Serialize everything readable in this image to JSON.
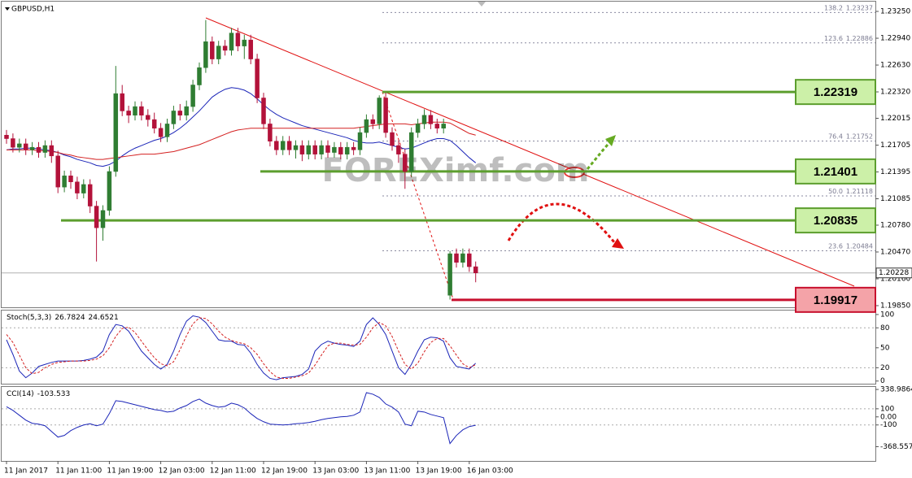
{
  "chart_data": [
    {
      "type": "candlestick",
      "title": "GBPUSD,H1",
      "watermark": "FOREXimf.com",
      "categories": [
        "11 Jan 2017",
        null,
        null,
        null,
        null,
        null,
        null,
        null,
        "11 Jan 11:00",
        null,
        null,
        null,
        null,
        null,
        null,
        null,
        "11 Jan 19:00",
        null,
        null,
        null,
        null,
        null,
        null,
        null,
        "12 Jan 03:00",
        null,
        null,
        null,
        null,
        null,
        null,
        null,
        "12 Jan 11:00",
        null,
        null,
        null,
        null,
        null,
        null,
        null,
        "12 Jan 19:00",
        null,
        null,
        null,
        null,
        null,
        null,
        null,
        "13 Jan 03:00",
        null,
        null,
        null,
        null,
        null,
        null,
        null,
        "13 Jan 11:00",
        null,
        null,
        null,
        null,
        null,
        null,
        null,
        "13 Jan 19:00",
        null,
        null,
        null,
        null,
        null,
        null,
        null,
        "16 Jan 03:00",
        null
      ],
      "open": [
        1.2182,
        1.2178,
        1.2168,
        1.2172,
        1.2165,
        1.2168,
        1.2162,
        1.217,
        1.2158,
        1.2122,
        1.2135,
        1.2128,
        1.2115,
        1.2125,
        1.21,
        1.2075,
        1.2095,
        1.214,
        1.223,
        1.221,
        1.2205,
        1.2215,
        1.2205,
        1.22,
        1.219,
        1.218,
        1.2195,
        1.221,
        1.2205,
        1.2215,
        1.224,
        1.226,
        1.229,
        1.227,
        1.2285,
        1.228,
        1.23,
        1.2285,
        1.2292,
        1.227,
        1.2225,
        1.2195,
        1.2175,
        1.2165,
        1.2175,
        1.2165,
        1.217,
        1.216,
        1.217,
        1.216,
        1.217,
        1.2162,
        1.2168,
        1.216,
        1.2168,
        1.2165,
        1.2185,
        1.22,
        1.2195,
        1.2225,
        1.2185,
        1.217,
        1.216,
        1.214,
        1.2185,
        1.2195,
        1.2205,
        1.2195,
        1.219,
        1.1997,
        1.2045,
        1.2035,
        1.2045,
        1.203
      ],
      "high": [
        1.2188,
        1.2184,
        1.2178,
        1.2178,
        1.2174,
        1.2174,
        1.2176,
        1.2176,
        1.2164,
        1.2141,
        1.2141,
        1.2134,
        1.2131,
        1.2131,
        1.2106,
        1.2101,
        1.2146,
        1.2262,
        1.224,
        1.2216,
        1.2221,
        1.2221,
        1.2212,
        1.2208,
        1.2196,
        1.2201,
        1.2216,
        1.2218,
        1.2222,
        1.2246,
        1.2266,
        1.2315,
        1.2296,
        1.2291,
        1.2292,
        1.2306,
        1.2306,
        1.2298,
        1.2298,
        1.2276,
        1.2231,
        1.2201,
        1.2181,
        1.2181,
        1.2181,
        1.2176,
        1.2176,
        1.2176,
        1.2176,
        1.2176,
        1.2176,
        1.2174,
        1.2174,
        1.2174,
        1.2174,
        1.2191,
        1.2206,
        1.2206,
        1.2228,
        1.2231,
        1.2191,
        1.2176,
        1.2166,
        1.2191,
        1.2201,
        1.2212,
        1.2211,
        1.2201,
        1.2201,
        1.2048,
        1.2051,
        1.2051,
        1.2051,
        1.2036
      ],
      "low": [
        1.2172,
        1.2162,
        1.2162,
        1.2159,
        1.2159,
        1.2156,
        1.2156,
        1.215,
        1.2115,
        1.2116,
        1.212,
        1.2108,
        1.2109,
        1.2092,
        1.2036,
        1.206,
        1.2089,
        1.2134,
        1.2204,
        1.2196,
        1.2199,
        1.2199,
        1.2192,
        1.2184,
        1.2174,
        1.2174,
        1.2189,
        1.2199,
        1.2199,
        1.2209,
        1.2234,
        1.2254,
        1.2264,
        1.2264,
        1.2274,
        1.2274,
        1.2279,
        1.227,
        1.2264,
        1.2219,
        1.2189,
        1.2169,
        1.2159,
        1.2159,
        1.2159,
        1.2155,
        1.2152,
        1.2154,
        1.2154,
        1.2154,
        1.2156,
        1.2156,
        1.2154,
        1.2154,
        1.2159,
        1.2159,
        1.2179,
        1.2189,
        1.2189,
        1.2179,
        1.2164,
        1.215,
        1.212,
        1.2134,
        1.2179,
        1.2189,
        1.2189,
        1.2184,
        1.2184,
        1.1992,
        1.2029,
        1.2029,
        1.2024,
        1.2012
      ],
      "close": [
        1.2178,
        1.2168,
        1.2172,
        1.2165,
        1.2168,
        1.2162,
        1.217,
        1.2158,
        1.2122,
        1.2135,
        1.2128,
        1.2115,
        1.2125,
        1.21,
        1.2075,
        1.2095,
        1.214,
        1.223,
        1.221,
        1.2205,
        1.2215,
        1.2205,
        1.22,
        1.219,
        1.218,
        1.2195,
        1.221,
        1.2205,
        1.2215,
        1.224,
        1.226,
        1.229,
        1.227,
        1.2285,
        1.228,
        1.23,
        1.2285,
        1.2292,
        1.227,
        1.2225,
        1.2195,
        1.2175,
        1.2165,
        1.2175,
        1.2165,
        1.217,
        1.216,
        1.217,
        1.216,
        1.217,
        1.2162,
        1.2168,
        1.216,
        1.2168,
        1.2165,
        1.2185,
        1.22,
        1.2195,
        1.2225,
        1.2185,
        1.217,
        1.216,
        1.214,
        1.2185,
        1.2195,
        1.2205,
        1.2195,
        1.219,
        1.2195,
        1.2045,
        1.2035,
        1.2045,
        1.203,
        1.20228
      ],
      "up_color": "#2f7d32",
      "down_color": "#b3123a",
      "moving_averages": [
        {
          "color": "#1b25b8",
          "values": [
            1.2165,
            1.2166,
            1.2166,
            1.2167,
            1.2167,
            1.2166,
            1.2165,
            1.2164,
            1.2162,
            1.2159,
            1.2157,
            1.2154,
            1.2152,
            1.215,
            1.2147,
            1.2146,
            1.2148,
            1.2152,
            1.2158,
            1.2163,
            1.2167,
            1.217,
            1.2173,
            1.2176,
            1.2178,
            1.2181,
            1.2185,
            1.219,
            1.2196,
            1.2203,
            1.221,
            1.2218,
            1.2226,
            1.2231,
            1.2235,
            1.2237,
            1.2236,
            1.2234,
            1.223,
            1.2224,
            1.2217,
            1.2211,
            1.2206,
            1.2202,
            1.2199,
            1.2196,
            1.2193,
            1.2191,
            1.2189,
            1.2187,
            1.2185,
            1.2183,
            1.2181,
            1.2179,
            1.2176,
            1.2174,
            1.2173,
            1.2173,
            1.2174,
            1.2172,
            1.217,
            1.2168,
            1.2166,
            1.2167,
            1.217,
            1.2173,
            1.2176,
            1.2178,
            1.2178,
            1.2176,
            1.217,
            1.2163,
            1.2156,
            1.215
          ]
        },
        {
          "color": "#d42020",
          "values": [
            1.2165,
            1.2165,
            1.2165,
            1.2165,
            1.2165,
            1.2164,
            1.2164,
            1.2163,
            1.2162,
            1.216,
            1.2159,
            1.2157,
            1.2156,
            1.2155,
            1.2154,
            1.2154,
            1.2155,
            1.2156,
            1.2157,
            1.2158,
            1.2159,
            1.216,
            1.216,
            1.216,
            1.2161,
            1.2162,
            1.2163,
            1.2165,
            1.2167,
            1.2169,
            1.2171,
            1.2174,
            1.2177,
            1.218,
            1.2183,
            1.2186,
            1.2188,
            1.2189,
            1.219,
            1.219,
            1.219,
            1.219,
            1.219,
            1.219,
            1.219,
            1.219,
            1.219,
            1.219,
            1.219,
            1.219,
            1.219,
            1.219,
            1.219,
            1.219,
            1.219,
            1.2191,
            1.2192,
            1.2193,
            1.2194,
            1.2195,
            1.2195,
            1.2195,
            1.2195,
            1.2194,
            1.2195,
            1.2196,
            1.2197,
            1.2197,
            1.2197,
            1.2196,
            1.2192,
            1.2188,
            1.2184,
            1.2182
          ]
        }
      ],
      "ylim": [
        1.19831,
        1.23363
      ],
      "yticks": [
        {
          "value": 1.2325,
          "label": "1.23250"
        },
        {
          "value": 1.2294,
          "label": "1.22940"
        },
        {
          "value": 1.2263,
          "label": "1.22630"
        },
        {
          "value": 1.2232,
          "label": "1.22320"
        },
        1.22015,
        1.21705,
        1.21395,
        1.21085,
        {
          "value": 1.2078,
          "label": "1.20780"
        },
        {
          "value": 1.2047,
          "label": "1.20470"
        },
        {
          "value": 1.2016,
          "label": "1.20160"
        },
        {
          "value": 1.1985,
          "label": "1.19850"
        }
      ],
      "current_price": 1.20228,
      "levels": [
        {
          "value": 1.22319,
          "color": "#5c9e2e",
          "fill": "#ccf0a8"
        },
        {
          "value": 1.21401,
          "color": "#5c9e2e",
          "fill": "#ccf0a8"
        },
        {
          "value": 1.20835,
          "color": "#5c9e2e",
          "fill": "#ccf0a8"
        },
        {
          "value": 1.19917,
          "color": "#c8102e",
          "fill": "#f4a3a8"
        }
      ],
      "fib_levels": [
        {
          "ratio": 138.2,
          "price": 1.23237
        },
        {
          "ratio": 123.6,
          "price": 1.22886
        },
        {
          "ratio": 76.4,
          "price": 1.21752
        },
        {
          "ratio": {
            "value": 50,
            "label": "50.0"
          },
          "price": 1.21118
        },
        {
          "ratio": 23.6,
          "price": 1.20484
        }
      ]
    },
    {
      "type": "line",
      "title": "Stoch(5,3,3)",
      "series": [
        {
          "color": "#1b25b8",
          "dash": false,
          "values": [
            62,
            40,
            15,
            5,
            12,
            22,
            25,
            28,
            30,
            30,
            30,
            30,
            31,
            33,
            36,
            45,
            70,
            85,
            83,
            75,
            60,
            45,
            35,
            25,
            18,
            25,
            45,
            70,
            90,
            98,
            96,
            88,
            75,
            62,
            60,
            60,
            55,
            54,
            42,
            25,
            12,
            4,
            2,
            5,
            6,
            7,
            10,
            18,
            45,
            55,
            60,
            57,
            55,
            54,
            52,
            60,
            85,
            95,
            85,
            70,
            45,
            20,
            10,
            25,
            45,
            62,
            66,
            65,
            60,
            35,
            22,
            20,
            18,
            26.7824
          ]
        },
        {
          "color": "#d42020",
          "dash": true,
          "values": [
            70,
            58,
            39,
            20,
            11,
            13,
            20,
            25,
            28,
            29,
            30,
            30,
            30,
            31,
            33,
            38,
            50,
            67,
            79,
            81,
            73,
            60,
            47,
            35,
            26,
            23,
            29,
            47,
            68,
            86,
            95,
            94,
            86,
            75,
            66,
            61,
            58,
            56,
            50,
            40,
            26,
            14,
            6,
            4,
            4,
            6,
            8,
            12,
            24,
            39,
            53,
            57,
            57,
            55,
            54,
            55,
            66,
            80,
            88,
            83,
            67,
            45,
            25,
            18,
            27,
            44,
            58,
            64,
            64,
            53,
            39,
            26,
            20,
            24.6521
          ]
        }
      ],
      "ylim": [
        -4,
        106
      ],
      "yticks": [
        100,
        80,
        50,
        20,
        0
      ],
      "levels": [
        80,
        20
      ]
    },
    {
      "type": "line",
      "title": "CCI(14)",
      "series": [
        {
          "color": "#1b25b8",
          "dash": false,
          "values": [
            125,
            80,
            20,
            -40,
            -80,
            -90,
            -110,
            -180,
            -250,
            -230,
            -170,
            -130,
            -100,
            -85,
            -110,
            -90,
            40,
            200,
            190,
            170,
            150,
            130,
            110,
            90,
            80,
            60,
            70,
            110,
            140,
            190,
            220,
            170,
            140,
            120,
            130,
            170,
            150,
            110,
            40,
            -20,
            -60,
            -90,
            -95,
            -100,
            -95,
            -85,
            -80,
            -70,
            -55,
            -35,
            -20,
            -10,
            0,
            5,
            20,
            60,
            300,
            280,
            240,
            160,
            120,
            60,
            -90,
            -110,
            70,
            60,
            30,
            10,
            -10,
            -330,
            -230,
            -160,
            -120,
            -103.533
          ]
        }
      ],
      "ylim": [
        -545,
        370
      ],
      "yticks": [
        338.9864,
        100,
        {
          "value": 0,
          "label": "0.00"
        },
        -100,
        -368.5578
      ],
      "levels": [
        100,
        -100
      ]
    }
  ]
}
